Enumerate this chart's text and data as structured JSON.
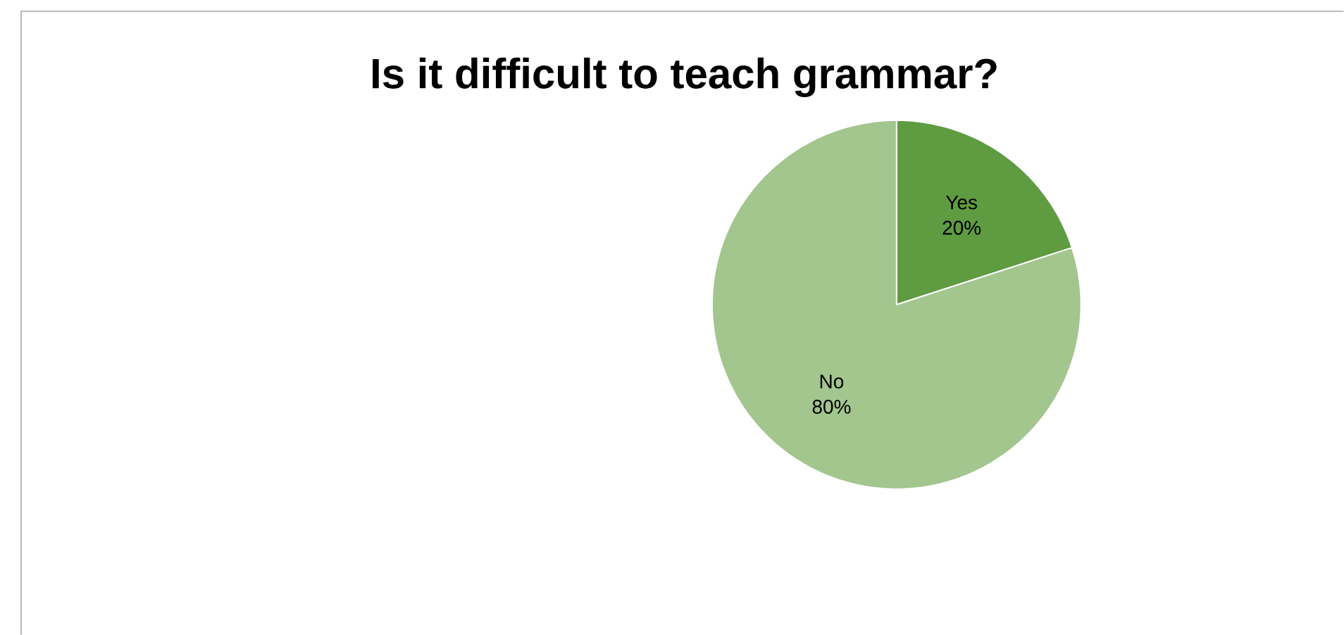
{
  "chart_data": {
    "type": "pie",
    "title": "Is it difficult to teach grammar?",
    "categories": [
      "Yes",
      "No"
    ],
    "values": [
      20,
      80
    ],
    "value_labels": [
      "20%",
      "80%"
    ],
    "colors": [
      "#5f9b41",
      "#a3c58e"
    ]
  }
}
